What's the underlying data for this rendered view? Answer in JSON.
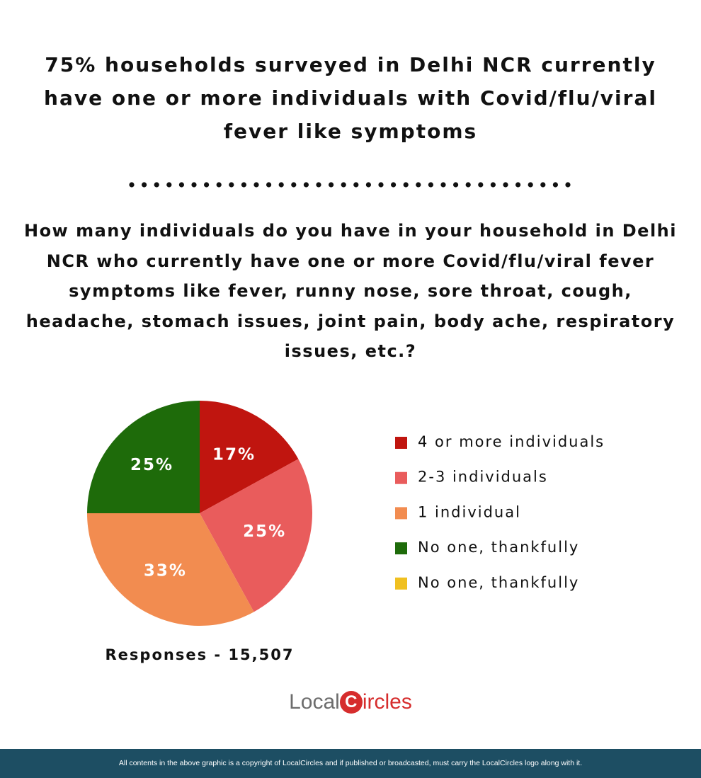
{
  "title": "75% households surveyed in Delhi NCR currently have one or more individuals with Covid/flu/viral fever like symptoms",
  "question": "How many individuals do you have in your household in Delhi NCR who currently have one or more Covid/flu/viral fever symptoms like fever, runny nose, sore throat, cough, headache, stomach issues, joint pain, body ache, respiratory issues, etc.?",
  "chart_data": {
    "type": "pie",
    "categories": [
      "4 or more individuals",
      "2-3 individuals",
      "1 individual",
      "No one, thankfully",
      "No one, thankfully"
    ],
    "values": [
      17,
      25,
      33,
      25,
      0
    ],
    "value_labels": [
      "17%",
      "25%",
      "33%",
      "25%",
      null
    ],
    "colors": [
      "#c0150f",
      "#e95c5c",
      "#f28c50",
      "#1e6b0a",
      "#f0c020"
    ],
    "legend": "right",
    "note": "Responses - 15,507"
  },
  "logo": {
    "first": "Local",
    "mark": "C",
    "rest": "ircles"
  },
  "footer": "All contents in the above graphic is a copyright of LocalCircles and if published or broadcasted, must carry the LocalCircles logo along with it."
}
